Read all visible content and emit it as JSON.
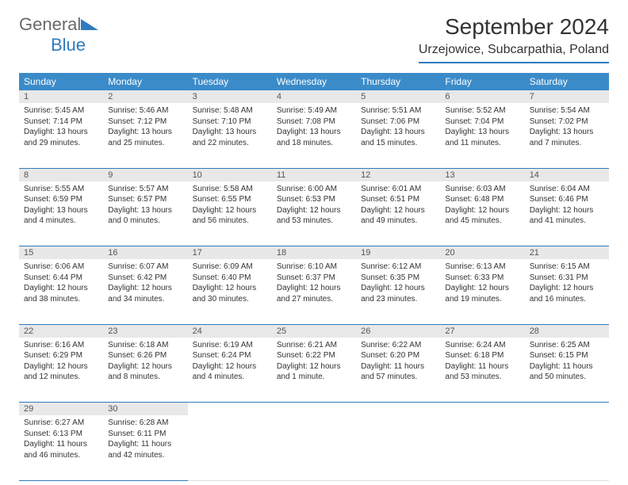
{
  "brand": {
    "general": "General",
    "blue": "Blue"
  },
  "title": "September 2024",
  "location": "Urzejowice, Subcarpathia, Poland",
  "colors": {
    "header_bg": "#3b8bc9",
    "header_text": "#ffffff",
    "daynum_bg": "#e8e8e8",
    "border": "#2f7bbf",
    "logo_gray": "#6a6a6a",
    "logo_blue": "#2f7bbf"
  },
  "weekdays": [
    "Sunday",
    "Monday",
    "Tuesday",
    "Wednesday",
    "Thursday",
    "Friday",
    "Saturday"
  ],
  "weeks": [
    [
      {
        "n": "1",
        "sr": "Sunrise: 5:45 AM",
        "ss": "Sunset: 7:14 PM",
        "d1": "Daylight: 13 hours",
        "d2": "and 29 minutes."
      },
      {
        "n": "2",
        "sr": "Sunrise: 5:46 AM",
        "ss": "Sunset: 7:12 PM",
        "d1": "Daylight: 13 hours",
        "d2": "and 25 minutes."
      },
      {
        "n": "3",
        "sr": "Sunrise: 5:48 AM",
        "ss": "Sunset: 7:10 PM",
        "d1": "Daylight: 13 hours",
        "d2": "and 22 minutes."
      },
      {
        "n": "4",
        "sr": "Sunrise: 5:49 AM",
        "ss": "Sunset: 7:08 PM",
        "d1": "Daylight: 13 hours",
        "d2": "and 18 minutes."
      },
      {
        "n": "5",
        "sr": "Sunrise: 5:51 AM",
        "ss": "Sunset: 7:06 PM",
        "d1": "Daylight: 13 hours",
        "d2": "and 15 minutes."
      },
      {
        "n": "6",
        "sr": "Sunrise: 5:52 AM",
        "ss": "Sunset: 7:04 PM",
        "d1": "Daylight: 13 hours",
        "d2": "and 11 minutes."
      },
      {
        "n": "7",
        "sr": "Sunrise: 5:54 AM",
        "ss": "Sunset: 7:02 PM",
        "d1": "Daylight: 13 hours",
        "d2": "and 7 minutes."
      }
    ],
    [
      {
        "n": "8",
        "sr": "Sunrise: 5:55 AM",
        "ss": "Sunset: 6:59 PM",
        "d1": "Daylight: 13 hours",
        "d2": "and 4 minutes."
      },
      {
        "n": "9",
        "sr": "Sunrise: 5:57 AM",
        "ss": "Sunset: 6:57 PM",
        "d1": "Daylight: 13 hours",
        "d2": "and 0 minutes."
      },
      {
        "n": "10",
        "sr": "Sunrise: 5:58 AM",
        "ss": "Sunset: 6:55 PM",
        "d1": "Daylight: 12 hours",
        "d2": "and 56 minutes."
      },
      {
        "n": "11",
        "sr": "Sunrise: 6:00 AM",
        "ss": "Sunset: 6:53 PM",
        "d1": "Daylight: 12 hours",
        "d2": "and 53 minutes."
      },
      {
        "n": "12",
        "sr": "Sunrise: 6:01 AM",
        "ss": "Sunset: 6:51 PM",
        "d1": "Daylight: 12 hours",
        "d2": "and 49 minutes."
      },
      {
        "n": "13",
        "sr": "Sunrise: 6:03 AM",
        "ss": "Sunset: 6:48 PM",
        "d1": "Daylight: 12 hours",
        "d2": "and 45 minutes."
      },
      {
        "n": "14",
        "sr": "Sunrise: 6:04 AM",
        "ss": "Sunset: 6:46 PM",
        "d1": "Daylight: 12 hours",
        "d2": "and 41 minutes."
      }
    ],
    [
      {
        "n": "15",
        "sr": "Sunrise: 6:06 AM",
        "ss": "Sunset: 6:44 PM",
        "d1": "Daylight: 12 hours",
        "d2": "and 38 minutes."
      },
      {
        "n": "16",
        "sr": "Sunrise: 6:07 AM",
        "ss": "Sunset: 6:42 PM",
        "d1": "Daylight: 12 hours",
        "d2": "and 34 minutes."
      },
      {
        "n": "17",
        "sr": "Sunrise: 6:09 AM",
        "ss": "Sunset: 6:40 PM",
        "d1": "Daylight: 12 hours",
        "d2": "and 30 minutes."
      },
      {
        "n": "18",
        "sr": "Sunrise: 6:10 AM",
        "ss": "Sunset: 6:37 PM",
        "d1": "Daylight: 12 hours",
        "d2": "and 27 minutes."
      },
      {
        "n": "19",
        "sr": "Sunrise: 6:12 AM",
        "ss": "Sunset: 6:35 PM",
        "d1": "Daylight: 12 hours",
        "d2": "and 23 minutes."
      },
      {
        "n": "20",
        "sr": "Sunrise: 6:13 AM",
        "ss": "Sunset: 6:33 PM",
        "d1": "Daylight: 12 hours",
        "d2": "and 19 minutes."
      },
      {
        "n": "21",
        "sr": "Sunrise: 6:15 AM",
        "ss": "Sunset: 6:31 PM",
        "d1": "Daylight: 12 hours",
        "d2": "and 16 minutes."
      }
    ],
    [
      {
        "n": "22",
        "sr": "Sunrise: 6:16 AM",
        "ss": "Sunset: 6:29 PM",
        "d1": "Daylight: 12 hours",
        "d2": "and 12 minutes."
      },
      {
        "n": "23",
        "sr": "Sunrise: 6:18 AM",
        "ss": "Sunset: 6:26 PM",
        "d1": "Daylight: 12 hours",
        "d2": "and 8 minutes."
      },
      {
        "n": "24",
        "sr": "Sunrise: 6:19 AM",
        "ss": "Sunset: 6:24 PM",
        "d1": "Daylight: 12 hours",
        "d2": "and 4 minutes."
      },
      {
        "n": "25",
        "sr": "Sunrise: 6:21 AM",
        "ss": "Sunset: 6:22 PM",
        "d1": "Daylight: 12 hours",
        "d2": "and 1 minute."
      },
      {
        "n": "26",
        "sr": "Sunrise: 6:22 AM",
        "ss": "Sunset: 6:20 PM",
        "d1": "Daylight: 11 hours",
        "d2": "and 57 minutes."
      },
      {
        "n": "27",
        "sr": "Sunrise: 6:24 AM",
        "ss": "Sunset: 6:18 PM",
        "d1": "Daylight: 11 hours",
        "d2": "and 53 minutes."
      },
      {
        "n": "28",
        "sr": "Sunrise: 6:25 AM",
        "ss": "Sunset: 6:15 PM",
        "d1": "Daylight: 11 hours",
        "d2": "and 50 minutes."
      }
    ],
    [
      {
        "n": "29",
        "sr": "Sunrise: 6:27 AM",
        "ss": "Sunset: 6:13 PM",
        "d1": "Daylight: 11 hours",
        "d2": "and 46 minutes."
      },
      {
        "n": "30",
        "sr": "Sunrise: 6:28 AM",
        "ss": "Sunset: 6:11 PM",
        "d1": "Daylight: 11 hours",
        "d2": "and 42 minutes."
      },
      null,
      null,
      null,
      null,
      null
    ]
  ]
}
